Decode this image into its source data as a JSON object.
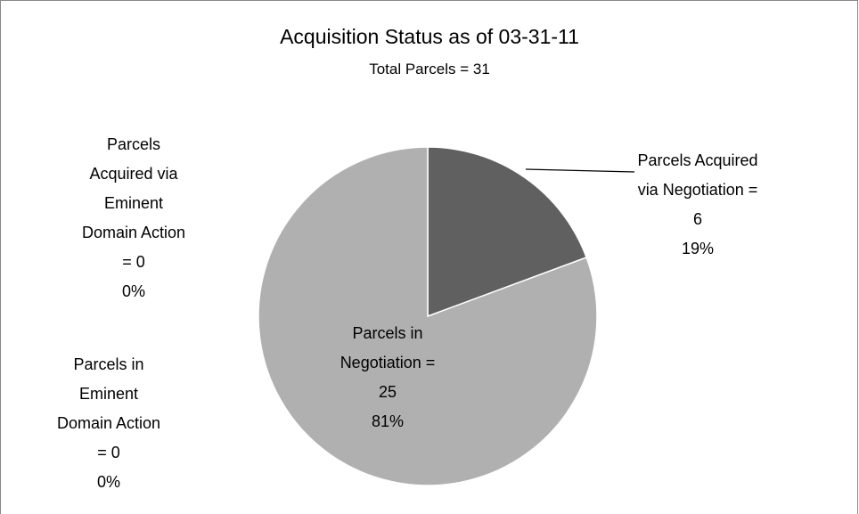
{
  "chart_data": {
    "type": "pie",
    "title": "Acquisition Status as of 03-31-11",
    "subtitle": "Total Parcels = 31",
    "categories": [
      "Parcels Acquired via Negotiation",
      "Parcels in Negotiation",
      "Parcels in Eminent Domain Action",
      "Parcels Acquired via Eminent Domain Action"
    ],
    "values": [
      6,
      25,
      0,
      0
    ],
    "percent_labels": [
      "19%",
      "81%",
      "0%",
      "0%"
    ],
    "label_separator": "=",
    "colors": [
      "#606060",
      "#b0b0b0",
      "#888888",
      "#d0d0d0"
    ]
  }
}
